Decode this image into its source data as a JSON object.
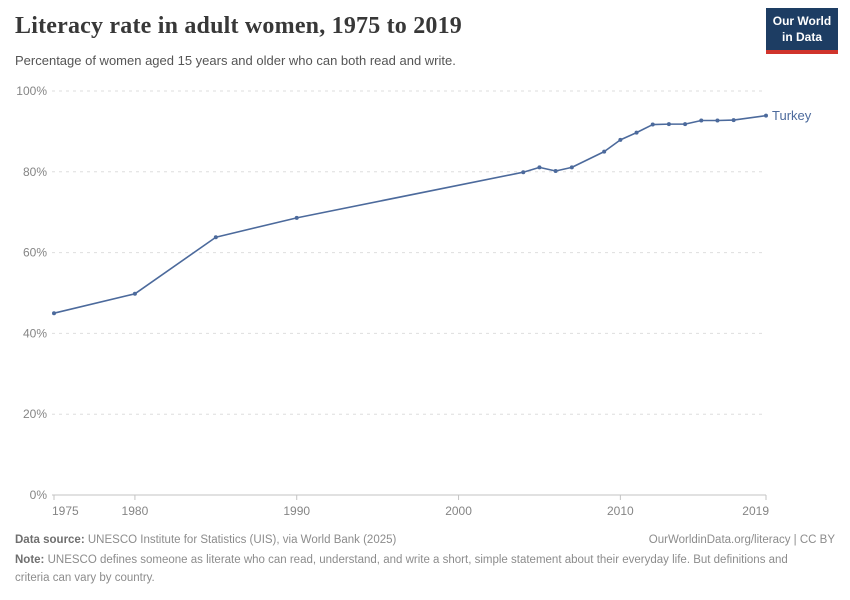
{
  "header": {
    "title": "Literacy rate in adult women, 1975 to 2019",
    "subtitle": "Percentage of women aged 15 years and older who can both read and write.",
    "logo": {
      "line1": "Our World",
      "line2": "in Data",
      "bg_color": "#1d3d63",
      "stripe_color": "#d0342c"
    }
  },
  "chart_data": {
    "type": "line",
    "title": "Literacy rate in adult women, 1975 to 2019",
    "xlabel": "",
    "ylabel": "",
    "xlim": [
      1975,
      2019
    ],
    "ylim": [
      0,
      100
    ],
    "x_ticks": [
      1975,
      1980,
      1990,
      2000,
      2010,
      2019
    ],
    "y_ticks": [
      0,
      20,
      40,
      60,
      80,
      100
    ],
    "y_tick_suffix": "%",
    "grid": "horizontal-dashed",
    "legend_position": "end-of-line-label",
    "series": [
      {
        "name": "Turkey",
        "color": "#4c6a9c",
        "points": [
          {
            "year": 1975,
            "value": 45.0
          },
          {
            "year": 1980,
            "value": 49.8
          },
          {
            "year": 1985,
            "value": 63.8
          },
          {
            "year": 1990,
            "value": 68.6
          },
          {
            "year": 2004,
            "value": 79.9
          },
          {
            "year": 2005,
            "value": 81.1
          },
          {
            "year": 2006,
            "value": 80.2
          },
          {
            "year": 2007,
            "value": 81.1
          },
          {
            "year": 2009,
            "value": 85.0
          },
          {
            "year": 2010,
            "value": 87.9
          },
          {
            "year": 2011,
            "value": 89.7
          },
          {
            "year": 2012,
            "value": 91.7
          },
          {
            "year": 2013,
            "value": 91.8
          },
          {
            "year": 2014,
            "value": 91.8
          },
          {
            "year": 2015,
            "value": 92.7
          },
          {
            "year": 2016,
            "value": 92.7
          },
          {
            "year": 2017,
            "value": 92.8
          },
          {
            "year": 2019,
            "value": 93.9
          }
        ]
      }
    ],
    "colors": {
      "gridline": "#dedede",
      "axis_line": "#c3c3c3",
      "tick_label": "#858585"
    }
  },
  "footer": {
    "data_source_label": "Data source:",
    "data_source": "UNESCO Institute for Statistics (UIS), via World Bank (2025)",
    "link": "OurWorldinData.org/literacy | CC BY",
    "note_label": "Note:",
    "note": "UNESCO defines someone as literate who can read, understand, and write a short, simple statement about their everyday life. But definitions and criteria can vary by country."
  }
}
